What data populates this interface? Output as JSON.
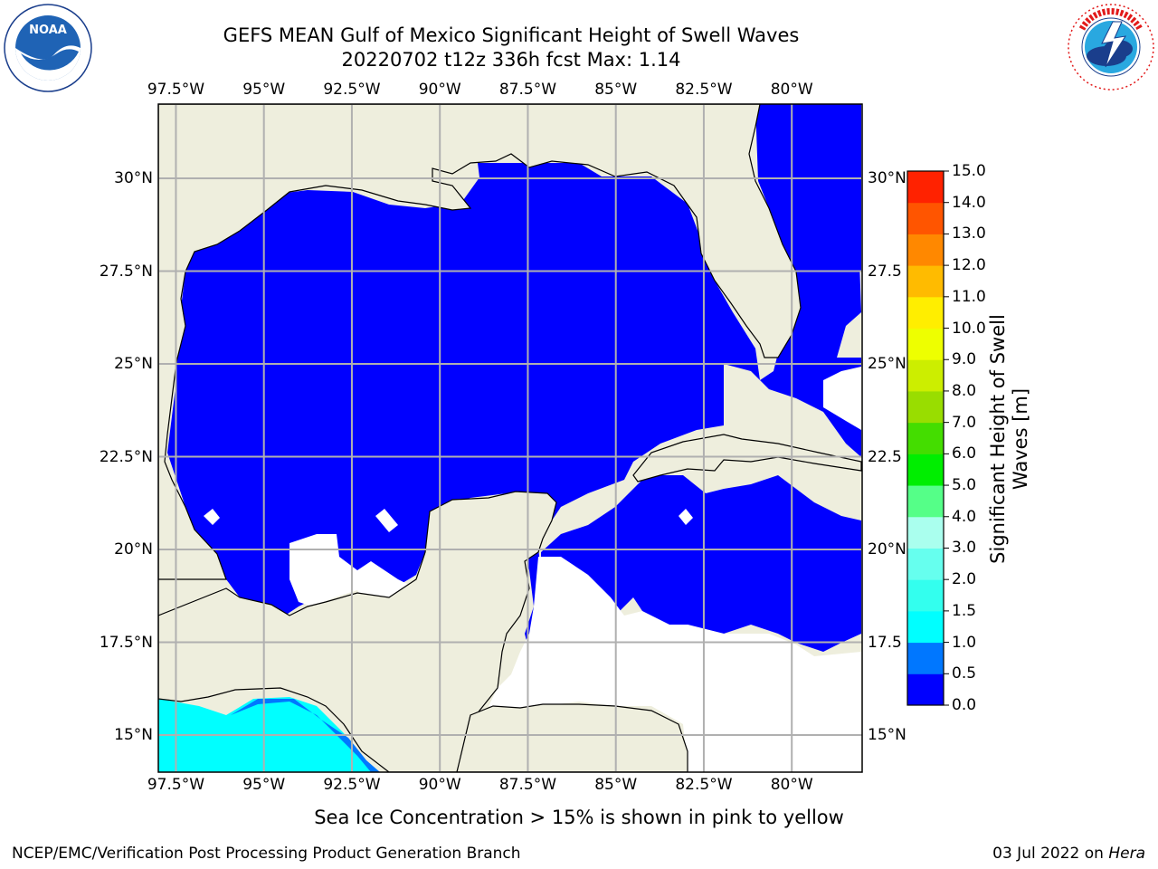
{
  "title": {
    "line1": "GEFS MEAN Gulf of Mexico Significant Height of Swell Waves",
    "line2": "20220702 t12z 336h fcst   Max: 1.14"
  },
  "logos": {
    "left": "noaa-logo",
    "right": "nws-logo"
  },
  "axes": {
    "longitude_labels": [
      "97.5°W",
      "95°W",
      "92.5°W",
      "90°W",
      "87.5°W",
      "85°W",
      "82.5°W",
      "80°W"
    ],
    "longitude_values": [
      -97.5,
      -95,
      -92.5,
      -90,
      -87.5,
      -85,
      -82.5,
      -80
    ],
    "latitude_labels_left": [
      "30°N",
      "27.5°N",
      "25°N",
      "22.5°N",
      "20°N",
      "17.5°N",
      "15°N"
    ],
    "latitude_labels_right": [
      "30°N",
      "27.5",
      "25°N",
      "22.5",
      "20°N",
      "17.5",
      "15°N"
    ],
    "latitude_values": [
      30,
      27.5,
      25,
      22.5,
      20,
      17.5,
      15
    ],
    "lon_range": [
      -98,
      -78
    ],
    "lat_range": [
      14,
      32
    ],
    "grid": true
  },
  "colorbar": {
    "label": "Significant Height of Swell Waves [m]",
    "tick_labels": [
      "0.0",
      "0.5",
      "1.0",
      "1.5",
      "2.0",
      "3.0",
      "4.0",
      "5.0",
      "6.0",
      "7.0",
      "8.0",
      "9.0",
      "10.0",
      "11.0",
      "12.0",
      "13.0",
      "14.0",
      "15.0"
    ],
    "colors": [
      "#0000ff",
      "#0077ff",
      "#00ffff",
      "#33ffee",
      "#66ffee",
      "#aaffee",
      "#55ff88",
      "#00ee00",
      "#44dd00",
      "#99dd00",
      "#ccee00",
      "#eeff00",
      "#ffee00",
      "#ffbb00",
      "#ff8800",
      "#ff5500",
      "#ff2200",
      "#ff0000"
    ]
  },
  "colors": {
    "land": "#eeeedd",
    "ocean_swell_low": "#0000ff",
    "ocean_swell_mid": "#00ffff",
    "missing": "#ffffff",
    "grid": "#b0b0b0"
  },
  "footnote": "Sea Ice Concentration > 15% is shown in pink to yellow",
  "footer": {
    "left": "NCEP/EMC/Verification Post Processing Product Generation Branch",
    "right_date": "03 Jul 2022 on",
    "right_host": "Hera"
  }
}
